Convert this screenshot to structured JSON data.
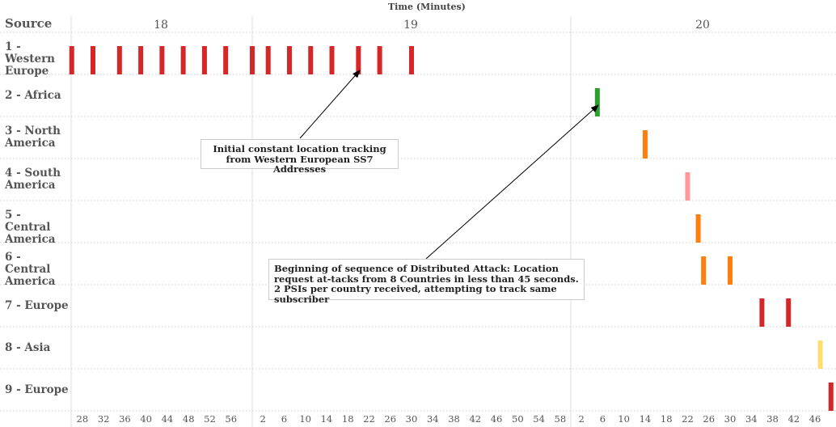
{
  "chart_data": {
    "type": "scatter",
    "title": "Time (Minutes)",
    "row_header": "Source",
    "minute_labels": [
      "18",
      "19",
      "20"
    ],
    "second_tick_labels": {
      "18": [
        "28",
        "32",
        "36",
        "40",
        "44",
        "48",
        "52",
        "56"
      ],
      "19": [
        "2",
        "6",
        "10",
        "14",
        "18",
        "22",
        "26",
        "30",
        "34",
        "38",
        "42",
        "46",
        "50",
        "54",
        "58"
      ],
      "20": [
        "2",
        "6",
        "10",
        "14",
        "18",
        "22",
        "26",
        "30",
        "34",
        "38",
        "42",
        "46"
      ]
    },
    "xlim": [
      "18:26",
      "20:50"
    ],
    "grid": true,
    "rows": [
      {
        "label": "1 - Western Europe",
        "color": "#d62728",
        "times": [
          "18:26",
          "18:30",
          "18:35",
          "18:39",
          "18:43",
          "18:47",
          "18:51",
          "18:55",
          "19:00",
          "19:03",
          "19:07",
          "19:11",
          "19:15",
          "19:20",
          "19:24",
          "19:30"
        ]
      },
      {
        "label": "2 - Africa",
        "color": "#2ca02c",
        "times": [
          "20:05"
        ]
      },
      {
        "label": "3 - North America",
        "color": "#ff7f0e",
        "times": [
          "20:14"
        ]
      },
      {
        "label": "4 - South America",
        "color": "#ff9896",
        "times": [
          "20:22"
        ]
      },
      {
        "label": "5 - Central America",
        "color": "#ff7f0e",
        "times": [
          "20:24"
        ]
      },
      {
        "label": "6 - Central America",
        "color": "#ff7f0e",
        "times": [
          "20:25",
          "20:30"
        ]
      },
      {
        "label": "7 - Europe",
        "color": "#d62728",
        "times": [
          "20:36",
          "20:41"
        ]
      },
      {
        "label": "8 - Asia",
        "color": "#ffdd71",
        "times": [
          "20:47"
        ]
      },
      {
        "label": "9 - Europe",
        "color": "#d62728",
        "times": [
          "20:49"
        ]
      }
    ],
    "annotations": [
      {
        "text": "Initial constant location tracking from Western European SS7 Addresses",
        "target_row": 0,
        "target_time": "19:20"
      },
      {
        "text": "Beginning of sequence of Distributed Attack: Location request at-tacks from 8 Countries in less than 45 seconds. 2 PSIs per country received, attempting to track same subscriber",
        "target_row": 1,
        "target_time": "20:05"
      }
    ]
  }
}
